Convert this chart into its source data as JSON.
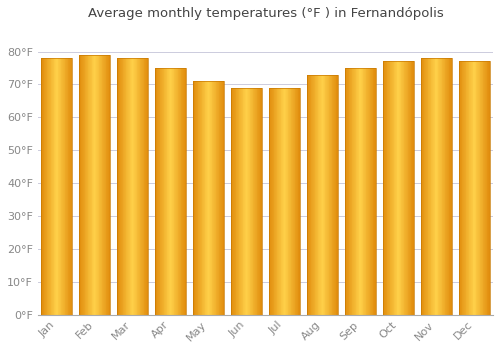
{
  "categories": [
    "Jan",
    "Feb",
    "Mar",
    "Apr",
    "May",
    "Jun",
    "Jul",
    "Aug",
    "Sep",
    "Oct",
    "Nov",
    "Dec"
  ],
  "values": [
    78,
    79,
    78,
    75,
    71,
    69,
    69,
    73,
    75,
    77,
    78,
    77
  ],
  "bar_color_center": "#FFD04A",
  "bar_color_edge": "#E08800",
  "title": "Average monthly temperatures (°F ) in Fernandópolis",
  "ylim": [
    0,
    88
  ],
  "yticks": [
    0,
    10,
    20,
    30,
    40,
    50,
    60,
    70,
    80
  ],
  "ytick_labels": [
    "0°F",
    "10°F",
    "20°F",
    "30°F",
    "40°F",
    "50°F",
    "60°F",
    "70°F",
    "80°F"
  ],
  "background_color": "#FFFFFF",
  "grid_color": "#CCCCDD",
  "title_fontsize": 9.5,
  "tick_fontsize": 8,
  "title_color": "#444444",
  "tick_color": "#888888"
}
